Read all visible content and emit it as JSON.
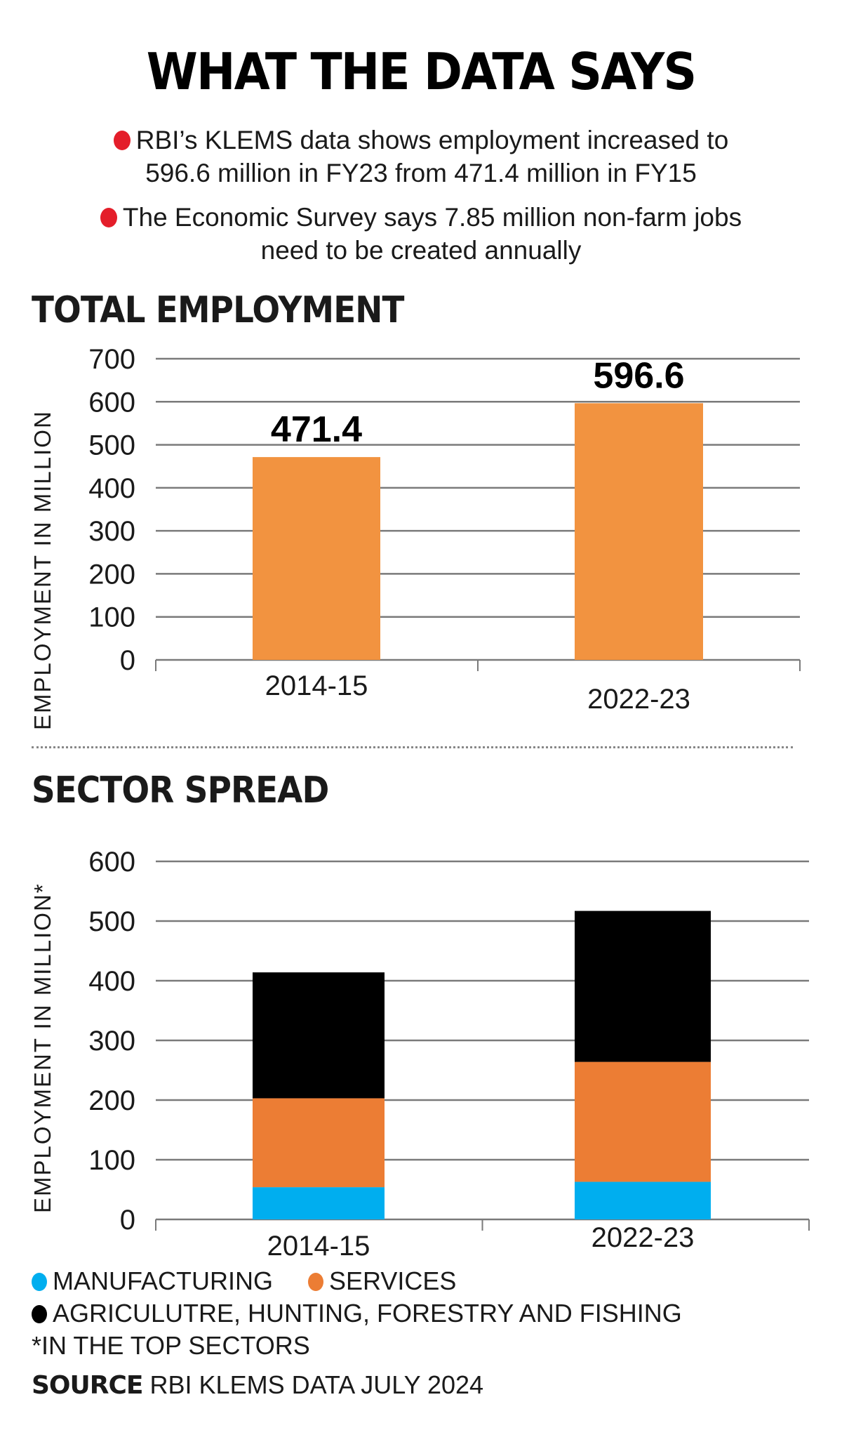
{
  "title": "WHAT THE DATA SAYS",
  "bullets": [
    {
      "lines": [
        "RBI’s KLEMS data shows employment increased to",
        "596.6 million in FY23 from 471.4 million in FY15"
      ]
    },
    {
      "lines": [
        "The Economic Survey says 7.85 million non-farm jobs",
        "need to be created annually"
      ]
    }
  ],
  "colors": {
    "bullet": "#e41e2a",
    "total_bar": "#f29340",
    "manufacturing": "#00aeef",
    "services": "#ec7d34",
    "agriculture": "#000000",
    "grid": "#7a7a7a"
  },
  "footnote": "*IN THE TOP SECTORS",
  "source": {
    "label": "SOURCE",
    "text": "RBI KLEMS DATA JULY 2024"
  },
  "chart_data": [
    {
      "type": "bar",
      "title": "TOTAL EMPLOYMENT",
      "xlabel": "",
      "ylabel": "EMPLOYMENT IN MILLION",
      "categories": [
        "2014-15",
        "2022-23"
      ],
      "values": [
        471.4,
        596.6
      ],
      "data_labels": [
        "471.4",
        "596.6"
      ],
      "ylim": [
        0,
        700
      ],
      "yticks": [
        0,
        100,
        200,
        300,
        400,
        500,
        600,
        700
      ],
      "ytick_labels": [
        "0",
        "100",
        "200",
        "300",
        "400",
        "500",
        "600",
        "700"
      ],
      "grid": true
    },
    {
      "type": "bar",
      "stacked": true,
      "title": "SECTOR SPREAD",
      "xlabel": "",
      "ylabel": "EMPLOYMENT IN MILLION*",
      "categories": [
        "2014-15",
        "2022-23"
      ],
      "series": [
        {
          "name": "MANUFACTURING",
          "values": [
            54,
            63
          ]
        },
        {
          "name": "SERVICES",
          "values": [
            149,
            201
          ]
        },
        {
          "name": "AGRICULUTRE, HUNTING, FORESTRY AND FISHING",
          "values": [
            211,
            253
          ]
        }
      ],
      "ylim": [
        0,
        600
      ],
      "yticks": [
        0,
        100,
        200,
        300,
        400,
        500,
        600
      ],
      "ytick_labels": [
        "0",
        "100",
        "200",
        "300",
        "400",
        "500",
        "600"
      ],
      "grid": true,
      "legend": "bottom"
    }
  ]
}
